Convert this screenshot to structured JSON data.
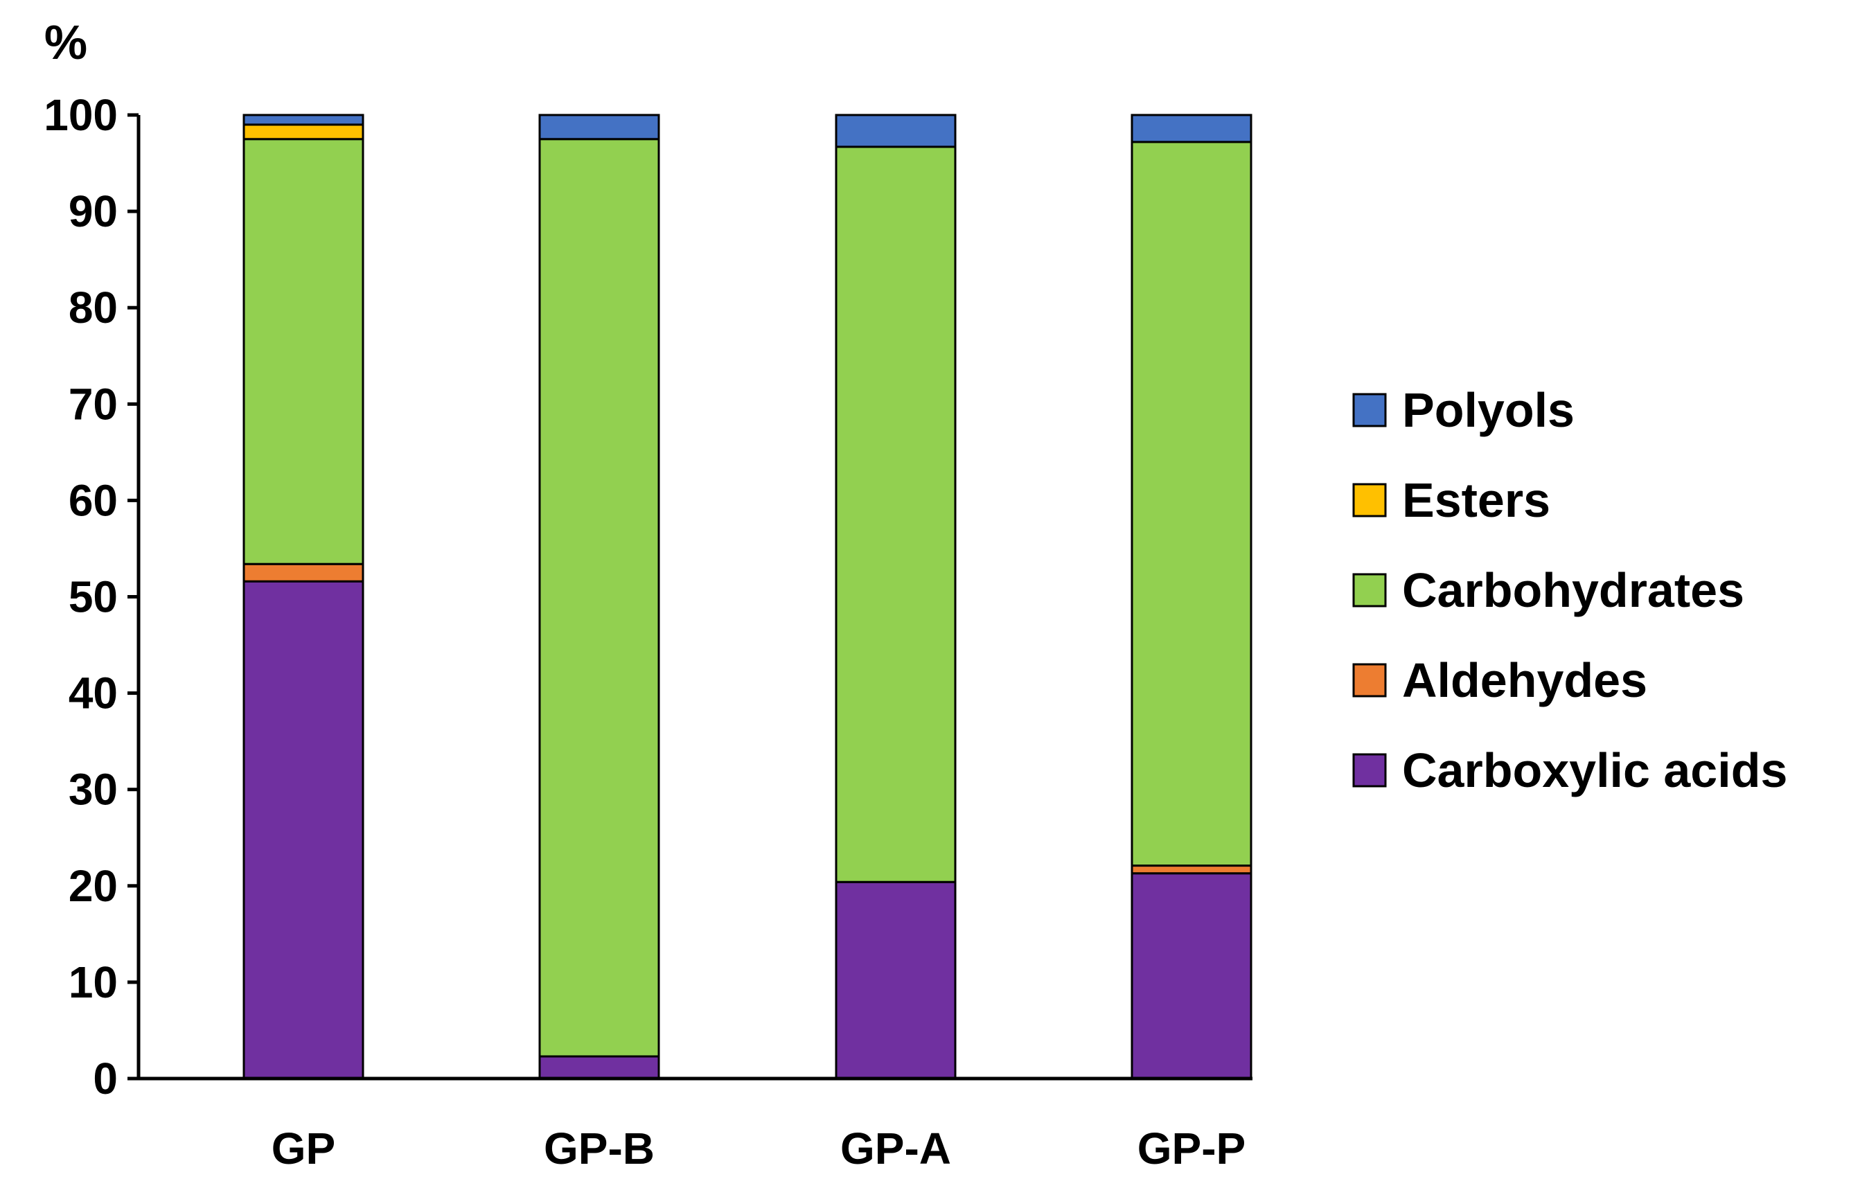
{
  "chart_data": {
    "type": "bar",
    "stacked": true,
    "title": "",
    "xlabel": "",
    "ylabel": "%",
    "ylim": [
      0,
      100
    ],
    "yticks": [
      0,
      10,
      20,
      30,
      40,
      50,
      60,
      70,
      80,
      90,
      100
    ],
    "grid": false,
    "legend_position": "right",
    "categories": [
      "GP",
      "GP-B",
      "GP-A",
      "GP-P"
    ],
    "series": [
      {
        "name": "Carboxylic acids",
        "color": "#7030A0",
        "values": [
          51.6,
          2.3,
          20.4,
          21.3
        ]
      },
      {
        "name": "Aldehydes",
        "color": "#ED7D31",
        "values": [
          1.8,
          0.0,
          0.0,
          0.8
        ]
      },
      {
        "name": "Carbohydrates",
        "color": "#92D050",
        "values": [
          44.1,
          95.2,
          76.3,
          75.1
        ]
      },
      {
        "name": "Esters",
        "color": "#FFC000",
        "values": [
          1.5,
          0.0,
          0.0,
          0.0
        ]
      },
      {
        "name": "Polyols",
        "color": "#4472C4",
        "values": [
          1.0,
          2.5,
          3.3,
          2.8
        ]
      }
    ],
    "legend_order": [
      "Polyols",
      "Esters",
      "Carbohydrates",
      "Aldehydes",
      "Carboxylic acids"
    ]
  }
}
